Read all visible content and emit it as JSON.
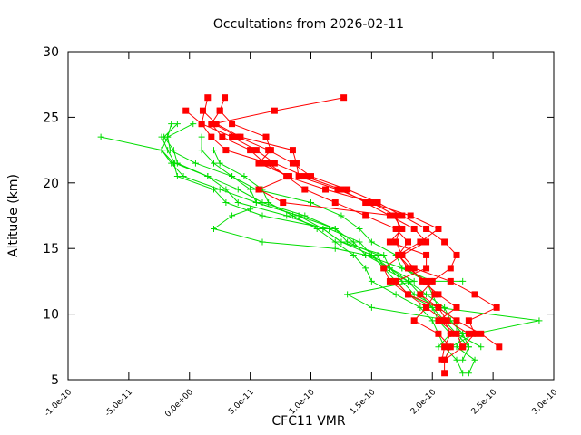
{
  "chart_data": {
    "type": "line",
    "title": "Occultations from 2026-02-11",
    "xlabel": "CFC11 VMR",
    "ylabel": "Altitude (km)",
    "xlim": [
      -1e-10,
      3e-10
    ],
    "ylim": [
      5,
      30
    ],
    "xticks": [
      -1e-10,
      -5e-11,
      0,
      5e-11,
      1e-10,
      1.5e-10,
      2e-10,
      2.5e-10,
      3e-10
    ],
    "xtick_labels": [
      "-1.0e-10",
      "-5.0e-11",
      "0.0e+00",
      "5.0e-11",
      "1.0e-10",
      "1.5e-10",
      "2.0e-10",
      "2.5e-10",
      "3.0e-10"
    ],
    "yticks": [
      5,
      10,
      15,
      20,
      25,
      30
    ],
    "ytick_labels": [
      "5",
      "10",
      "15",
      "20",
      "25",
      "30"
    ],
    "grid": false,
    "legend": "none",
    "colors": {
      "series_a": "#ff0000",
      "series_b": "#00dd00",
      "axis": "#000000"
    },
    "series": [
      {
        "name": "red-1",
        "color": "#ff0000",
        "marker": "square",
        "points": [
          [
            1.27e-10,
            26.5
          ],
          [
            7e-11,
            25.5
          ],
          [
            2e-11,
            24.5
          ],
          [
            4e-11,
            23.5
          ],
          [
            6.5e-11,
            22.5
          ],
          [
            8.5e-11,
            21.5
          ],
          [
            1e-10,
            20.5
          ],
          [
            1.3e-10,
            19.5
          ],
          [
            1.55e-10,
            18.5
          ],
          [
            1.75e-10,
            17.5
          ],
          [
            1.95e-10,
            16.5
          ],
          [
            2.1e-10,
            15.5
          ],
          [
            2.2e-10,
            14.5
          ],
          [
            2.15e-10,
            13.5
          ],
          [
            2e-10,
            12.5
          ],
          [
            1.9e-10,
            11.5
          ],
          [
            2.05e-10,
            10.5
          ],
          [
            2.2e-10,
            9.5
          ],
          [
            2.4e-10,
            8.5
          ],
          [
            2.55e-10,
            7.5
          ]
        ]
      },
      {
        "name": "red-2",
        "color": "#ff0000",
        "marker": "square",
        "points": [
          [
            1.5e-11,
            26.5
          ],
          [
            1e-11,
            24.5
          ],
          [
            3.5e-11,
            23.5
          ],
          [
            5.5e-11,
            22.5
          ],
          [
            7e-11,
            21.5
          ],
          [
            9.5e-11,
            20.5
          ],
          [
            1.25e-10,
            19.5
          ],
          [
            1.45e-10,
            18.5
          ],
          [
            1.65e-10,
            17.5
          ],
          [
            1.85e-10,
            16.5
          ],
          [
            1.95e-10,
            15.5
          ],
          [
            1.75e-10,
            14.5
          ],
          [
            1.6e-10,
            13.5
          ],
          [
            1.65e-10,
            12.5
          ],
          [
            1.8e-10,
            11.5
          ],
          [
            1.95e-10,
            10.5
          ],
          [
            1.85e-10,
            9.5
          ],
          [
            2.05e-10,
            8.5
          ],
          [
            2.15e-10,
            7.5
          ],
          [
            2.1e-10,
            6.5
          ],
          [
            2.1e-10,
            5.5
          ]
        ]
      },
      {
        "name": "red-3",
        "color": "#ff0000",
        "marker": "square",
        "points": [
          [
            2.9e-11,
            26.5
          ],
          [
            2.5e-11,
            25.5
          ],
          [
            1.8e-11,
            24.5
          ],
          [
            2.7e-11,
            23.5
          ],
          [
            5e-11,
            22.5
          ],
          [
            6.2e-11,
            21.5
          ],
          [
            8e-11,
            20.5
          ],
          [
            1.12e-10,
            19.5
          ],
          [
            1.5e-10,
            18.5
          ],
          [
            1.7e-10,
            17.5
          ],
          [
            1.73e-10,
            16.5
          ],
          [
            1.7e-10,
            15.5
          ],
          [
            1.75e-10,
            14.5
          ],
          [
            1.85e-10,
            13.5
          ],
          [
            2.15e-10,
            12.5
          ],
          [
            2.35e-10,
            11.5
          ],
          [
            2.53e-10,
            10.5
          ],
          [
            2.3e-10,
            9.5
          ],
          [
            2.35e-10,
            8.5
          ],
          [
            2.25e-10,
            7.5
          ],
          [
            2.1e-10,
            6.5
          ]
        ]
      },
      {
        "name": "red-4",
        "color": "#ff0000",
        "marker": "square",
        "points": [
          [
            -3e-12,
            25.5
          ],
          [
            1e-11,
            24.5
          ],
          [
            1.8e-11,
            23.5
          ],
          [
            3e-11,
            22.5
          ],
          [
            6.5e-11,
            21.5
          ],
          [
            8e-11,
            20.5
          ],
          [
            9.5e-11,
            19.5
          ],
          [
            1.2e-10,
            18.5
          ],
          [
            1.45e-10,
            17.5
          ],
          [
            1.7e-10,
            16.5
          ],
          [
            1.8e-10,
            15.5
          ],
          [
            1.72e-10,
            14.5
          ],
          [
            1.8e-10,
            13.5
          ],
          [
            1.95e-10,
            12.5
          ],
          [
            2.02e-10,
            11.5
          ],
          [
            1.95e-10,
            10.5
          ],
          [
            2.1e-10,
            9.5
          ],
          [
            2.15e-10,
            8.5
          ],
          [
            2.1e-10,
            7.5
          ],
          [
            2.08e-10,
            6.5
          ]
        ]
      },
      {
        "name": "red-5",
        "color": "#ff0000",
        "marker": "square",
        "points": [
          [
            1.1e-11,
            25.5
          ],
          [
            2.2e-11,
            24.5
          ],
          [
            4.2e-11,
            23.5
          ],
          [
            8.5e-11,
            22.5
          ],
          [
            8.8e-11,
            21.5
          ],
          [
            9e-11,
            20.5
          ],
          [
            1.22e-10,
            19.5
          ],
          [
            1.48e-10,
            18.5
          ],
          [
            1.82e-10,
            17.5
          ],
          [
            2.05e-10,
            16.5
          ],
          [
            1.9e-10,
            15.5
          ],
          [
            1.72e-10,
            14.5
          ],
          [
            1.82e-10,
            13.5
          ],
          [
            1.92e-10,
            12.5
          ],
          [
            2.05e-10,
            11.5
          ],
          [
            2.2e-10,
            10.5
          ],
          [
            2.05e-10,
            9.5
          ],
          [
            2.2e-10,
            8.5
          ],
          [
            2.25e-10,
            7.5
          ]
        ]
      },
      {
        "name": "red-6",
        "color": "#ff0000",
        "marker": "square",
        "points": [
          [
            2.5e-11,
            25.5
          ],
          [
            3.5e-11,
            24.5
          ],
          [
            6.3e-11,
            23.5
          ],
          [
            6.7e-11,
            22.5
          ],
          [
            5.7e-11,
            21.5
          ],
          [
            8.2e-11,
            20.5
          ],
          [
            5.7e-11,
            19.5
          ],
          [
            7.7e-11,
            18.5
          ],
          [
            1.68e-10,
            17.5
          ],
          [
            1.75e-10,
            16.5
          ],
          [
            1.65e-10,
            15.5
          ],
          [
            1.95e-10,
            14.5
          ],
          [
            1.95e-10,
            13.5
          ],
          [
            1.7e-10,
            12.5
          ],
          [
            1.8e-10,
            11.5
          ],
          [
            2.05e-10,
            10.5
          ],
          [
            2.12e-10,
            9.5
          ],
          [
            2.3e-10,
            8.5
          ]
        ]
      },
      {
        "name": "green-1",
        "color": "#00dd00",
        "marker": "plus",
        "points": [
          [
            -7.3e-11,
            23.5
          ],
          [
            -2.3e-11,
            22.5
          ],
          [
            -1.5e-11,
            21.5
          ],
          [
            -5e-12,
            20.5
          ],
          [
            2.5e-11,
            19.5
          ],
          [
            5.5e-11,
            18.5
          ],
          [
            9e-11,
            17.5
          ],
          [
            1.2e-10,
            16.5
          ],
          [
            1.35e-10,
            15.5
          ],
          [
            1.45e-10,
            14.5
          ],
          [
            1.65e-10,
            13.5
          ],
          [
            1.85e-10,
            12.5
          ],
          [
            1.3e-10,
            11.5
          ],
          [
            1.5e-10,
            10.5
          ],
          [
            2.15e-10,
            9.5
          ],
          [
            2.25e-10,
            8.5
          ],
          [
            2.2e-10,
            7.5
          ],
          [
            2.35e-10,
            6.5
          ],
          [
            2.3e-10,
            5.5
          ]
        ]
      },
      {
        "name": "green-2",
        "color": "#00dd00",
        "marker": "plus",
        "points": [
          [
            -1.5e-11,
            24.5
          ],
          [
            -1.8e-11,
            23.5
          ],
          [
            -1.6e-11,
            22.5
          ],
          [
            5e-12,
            21.5
          ],
          [
            3.5e-11,
            20.5
          ],
          [
            5.5e-11,
            19.5
          ],
          [
            1e-10,
            18.5
          ],
          [
            1.25e-10,
            17.5
          ],
          [
            1.4e-10,
            16.5
          ],
          [
            1.5e-10,
            15.5
          ],
          [
            1.7e-10,
            14.5
          ],
          [
            1.75e-10,
            13.5
          ],
          [
            1.95e-10,
            12.5
          ],
          [
            2e-10,
            11.5
          ],
          [
            2.05e-10,
            10.5
          ],
          [
            2.88e-10,
            9.5
          ],
          [
            2.35e-10,
            8.5
          ],
          [
            2.15e-10,
            7.5
          ],
          [
            2.1e-10,
            6.5
          ]
        ]
      },
      {
        "name": "green-3",
        "color": "#00dd00",
        "marker": "plus",
        "points": [
          [
            -1e-11,
            24.5
          ],
          [
            -2.1e-11,
            23.5
          ],
          [
            -1.3e-11,
            22.5
          ],
          [
            -1e-11,
            21.5
          ],
          [
            1.5e-11,
            20.5
          ],
          [
            3e-11,
            19.5
          ],
          [
            4e-11,
            18.5
          ],
          [
            8e-11,
            17.5
          ],
          [
            1.1e-10,
            16.5
          ],
          [
            1.25e-10,
            15.5
          ],
          [
            1.6e-10,
            14.5
          ],
          [
            1.65e-10,
            13.5
          ],
          [
            1.75e-10,
            12.5
          ],
          [
            1.85e-10,
            11.5
          ],
          [
            2.05e-10,
            10.5
          ],
          [
            2.2e-10,
            9.5
          ],
          [
            2.2e-10,
            8.5
          ],
          [
            2.3e-10,
            7.5
          ]
        ]
      },
      {
        "name": "green-4",
        "color": "#00dd00",
        "marker": "plus",
        "points": [
          [
            -2.3e-11,
            23.5
          ],
          [
            -1.8e-11,
            22.5
          ],
          [
            -1.2e-11,
            21.5
          ],
          [
            1.5e-11,
            20.5
          ],
          [
            4e-11,
            19.5
          ],
          [
            6e-11,
            18.5
          ],
          [
            9.5e-11,
            17.5
          ],
          [
            1.2e-10,
            16.5
          ],
          [
            1.3e-10,
            15.5
          ],
          [
            1.55e-10,
            14.5
          ],
          [
            1.6e-10,
            13.5
          ],
          [
            1.7e-10,
            12.5
          ],
          [
            1.8e-10,
            11.5
          ],
          [
            2e-10,
            10.5
          ],
          [
            2.05e-10,
            9.5
          ],
          [
            2.15e-10,
            8.5
          ],
          [
            2.05e-10,
            7.5
          ]
        ]
      },
      {
        "name": "green-5",
        "color": "#00dd00",
        "marker": "plus",
        "points": [
          [
            3e-12,
            24.5
          ],
          [
            -1.8e-11,
            23.5
          ],
          [
            -2.3e-11,
            22.5
          ],
          [
            -1.3e-11,
            21.5
          ],
          [
            -1e-11,
            20.5
          ],
          [
            2e-11,
            19.5
          ],
          [
            3e-11,
            18.5
          ],
          [
            6e-11,
            17.5
          ],
          [
            1.15e-10,
            16.5
          ],
          [
            1.4e-10,
            15.5
          ],
          [
            1.5e-10,
            14.5
          ],
          [
            1.6e-10,
            13.5
          ],
          [
            1.8e-10,
            12.5
          ],
          [
            1.9e-10,
            11.5
          ],
          [
            2e-10,
            10.5
          ],
          [
            2.1e-10,
            9.5
          ],
          [
            2.2e-10,
            8.5
          ],
          [
            2.4e-10,
            7.5
          ]
        ]
      },
      {
        "name": "green-6",
        "color": "#00dd00",
        "marker": "plus",
        "points": [
          [
            1e-11,
            23.5
          ],
          [
            1e-11,
            22.5
          ],
          [
            2e-11,
            21.5
          ],
          [
            3.5e-11,
            20.5
          ],
          [
            5e-11,
            19.5
          ],
          [
            5.5e-11,
            18.5
          ],
          [
            9e-11,
            17.5
          ],
          [
            1.1e-10,
            16.5
          ],
          [
            1.25e-10,
            15.5
          ],
          [
            1.5e-10,
            14.5
          ],
          [
            1.65e-10,
            13.5
          ],
          [
            1.8e-10,
            12.5
          ],
          [
            1.95e-10,
            11.5
          ],
          [
            2.1e-10,
            10.5
          ],
          [
            2.15e-10,
            9.5
          ],
          [
            2.25e-10,
            8.5
          ],
          [
            2.3e-10,
            7.5
          ],
          [
            2.25e-10,
            6.5
          ]
        ]
      },
      {
        "name": "green-7",
        "color": "#00dd00",
        "marker": "plus",
        "points": [
          [
            2e-11,
            22.5
          ],
          [
            2.5e-11,
            21.5
          ],
          [
            4.5e-11,
            20.5
          ],
          [
            6e-11,
            19.5
          ],
          [
            6.5e-11,
            18.5
          ],
          [
            8.5e-11,
            17.5
          ],
          [
            1.05e-10,
            16.5
          ],
          [
            1.2e-10,
            15.5
          ],
          [
            1.35e-10,
            14.5
          ],
          [
            1.45e-10,
            13.5
          ],
          [
            1.5e-10,
            12.5
          ],
          [
            1.7e-10,
            11.5
          ],
          [
            1.9e-10,
            10.5
          ],
          [
            2e-10,
            9.5
          ],
          [
            2.05e-10,
            8.5
          ],
          [
            2.1e-10,
            7.5
          ],
          [
            2.2e-10,
            6.5
          ],
          [
            2.25e-10,
            5.5
          ]
        ]
      },
      {
        "name": "green-8",
        "color": "#00dd00",
        "marker": "plus",
        "points": [
          [
            5e-11,
            18.0
          ],
          [
            3.5e-11,
            17.5
          ],
          [
            2e-11,
            16.5
          ],
          [
            6e-11,
            15.5
          ],
          [
            1.2e-10,
            15.0
          ],
          [
            1.45e-10,
            14.5
          ],
          [
            1.75e-10,
            13.5
          ],
          [
            2e-10,
            12.5
          ],
          [
            2.25e-10,
            12.5
          ]
        ]
      }
    ]
  }
}
